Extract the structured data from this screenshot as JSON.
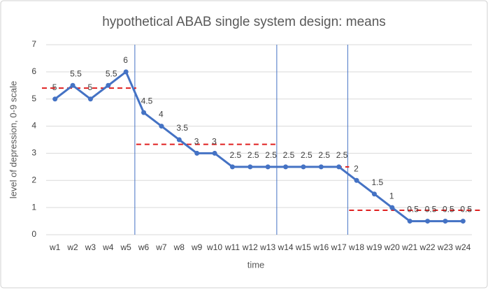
{
  "chart_data": {
    "type": "line",
    "title": "hypothetical ABAB single system design: means",
    "x_label": "time",
    "y_label": "level of depression, 0-9 scale",
    "categories": [
      "w1",
      "w2",
      "w3",
      "w4",
      "w5",
      "w6",
      "w7",
      "w8",
      "w9",
      "w10",
      "w11",
      "w12",
      "w13",
      "w14",
      "w15",
      "w16",
      "w17",
      "w18",
      "w19",
      "w20",
      "w21",
      "w22",
      "w23",
      "w24"
    ],
    "series": [
      {
        "color": "#4472c4",
        "values": [
          5,
          5.5,
          5,
          5.5,
          6,
          4.5,
          4,
          3.5,
          3,
          3,
          2.5,
          2.5,
          2.5,
          2.5,
          2.5,
          2.5,
          2.5,
          2,
          1.5,
          1,
          0.5,
          0.5,
          0.5,
          0.5
        ]
      }
    ],
    "phase_means": [
      5.4,
      3.33,
      2.5,
      0.9
    ],
    "mean_color": "#e02020",
    "phase_line_color": "#4472c4",
    "ylim": [
      0,
      7
    ],
    "yticks": [
      0,
      1,
      2,
      3,
      4,
      5,
      6,
      7
    ],
    "grid": true
  }
}
